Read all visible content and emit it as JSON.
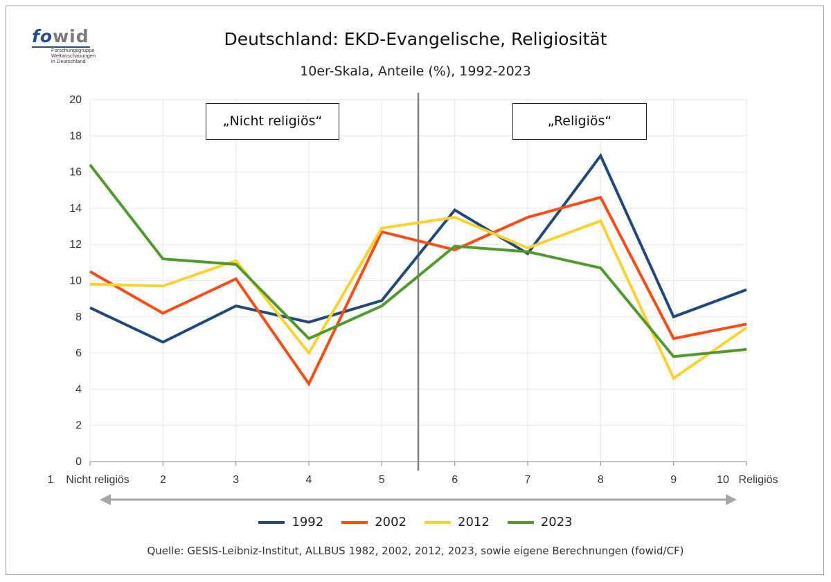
{
  "logo": {
    "word_prefix": "fo",
    "word_suffix": "wid",
    "lines": [
      "Forschungsgruppe",
      "Weltanschauungen",
      "in Deutschland"
    ]
  },
  "annotations": {
    "left": "„Nicht religiös“",
    "right": "„Religiös“"
  },
  "source": "Quelle: GESIS-Leibniz-Institut, ALLBUS 1982, 2002, 2012, 2023, sowie eigene Berechnungen (fowid/CF)",
  "colors": {
    "grid": "#e6e6e6",
    "divider": "#7f7f7f",
    "axis": "#888888",
    "arrow": "#a6a6a6"
  },
  "chart_data": {
    "type": "line",
    "title": "Deutschland: EKD-Evangelische, Religiosität",
    "subtitle": "10er-Skala, Anteile (%), 1992-2023",
    "x": [
      1,
      2,
      3,
      4,
      5,
      6,
      7,
      8,
      9,
      10
    ],
    "x_tick_labels": [
      "1   Nicht religiös",
      "2",
      "3",
      "4",
      "5",
      "6",
      "7",
      "8",
      "9",
      "10   Religiös"
    ],
    "ylim": [
      0,
      20
    ],
    "y_ticks": [
      0,
      2,
      4,
      6,
      8,
      10,
      12,
      14,
      16,
      18,
      20
    ],
    "grid": true,
    "legend_position": "bottom",
    "series": [
      {
        "name": "1992",
        "color": "#1f497d",
        "values": [
          8.5,
          6.6,
          8.6,
          7.7,
          8.9,
          13.9,
          11.5,
          16.9,
          8.0,
          9.5
        ]
      },
      {
        "name": "2002",
        "color": "#ff4b12",
        "values": [
          10.5,
          8.2,
          10.1,
          4.3,
          12.7,
          11.7,
          13.5,
          14.6,
          6.8,
          7.6
        ]
      },
      {
        "name": "2012",
        "color": "#ffd12e",
        "values": [
          9.8,
          9.7,
          11.1,
          6.0,
          12.9,
          13.5,
          11.8,
          13.3,
          4.6,
          7.4
        ]
      },
      {
        "name": "2023",
        "color": "#4e9a2a",
        "values": [
          16.4,
          11.2,
          10.9,
          6.8,
          8.6,
          11.9,
          11.6,
          10.7,
          5.8,
          6.2
        ]
      }
    ]
  }
}
